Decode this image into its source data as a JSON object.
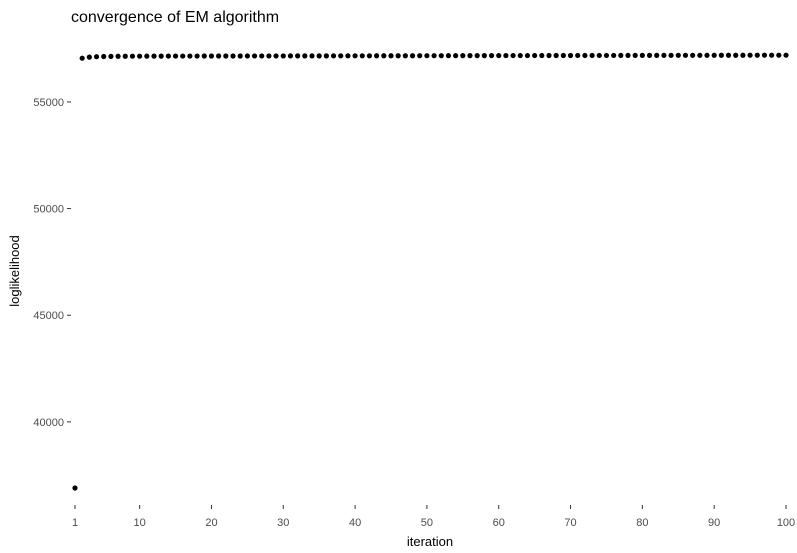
{
  "chart_data": {
    "type": "scatter",
    "title": "convergence of EM algorithm",
    "xlabel": "iteration",
    "ylabel": "loglikelihood",
    "x_ticks": [
      1,
      10,
      20,
      30,
      40,
      50,
      60,
      70,
      80,
      90,
      100
    ],
    "y_ticks": [
      40000,
      45000,
      50000,
      55000
    ],
    "xlim": [
      1,
      100
    ],
    "ylim": [
      36900,
      57200
    ],
    "grid": false,
    "legend": "none",
    "point_color": "#000000",
    "series": [
      {
        "x": [
          1,
          2,
          3,
          4,
          5,
          6,
          7,
          8,
          9,
          10,
          11,
          12,
          13,
          14,
          15,
          16,
          17,
          18,
          19,
          20,
          21,
          22,
          23,
          24,
          25,
          26,
          27,
          28,
          29,
          30,
          31,
          32,
          33,
          34,
          35,
          36,
          37,
          38,
          39,
          40,
          41,
          42,
          43,
          44,
          45,
          46,
          47,
          48,
          49,
          50,
          51,
          52,
          53,
          54,
          55,
          56,
          57,
          58,
          59,
          60,
          61,
          62,
          63,
          64,
          65,
          66,
          67,
          68,
          69,
          70,
          71,
          72,
          73,
          74,
          75,
          76,
          77,
          78,
          79,
          80,
          81,
          82,
          83,
          84,
          85,
          86,
          87,
          88,
          89,
          90,
          91,
          92,
          93,
          94,
          95,
          96,
          97,
          98,
          99,
          100
        ],
        "y": [
          36900,
          57050,
          57100,
          57120,
          57130,
          57135,
          57140,
          57142,
          57144,
          57145,
          57146,
          57147,
          57148,
          57149,
          57150,
          57150,
          57151,
          57151,
          57152,
          57152,
          57153,
          57153,
          57154,
          57154,
          57155,
          57155,
          57156,
          57156,
          57157,
          57157,
          57158,
          57158,
          57159,
          57159,
          57160,
          57160,
          57161,
          57161,
          57162,
          57162,
          57163,
          57163,
          57164,
          57164,
          57165,
          57165,
          57166,
          57166,
          57167,
          57167,
          57168,
          57168,
          57169,
          57169,
          57170,
          57170,
          57171,
          57171,
          57172,
          57172,
          57173,
          57173,
          57174,
          57174,
          57175,
          57175,
          57176,
          57176,
          57177,
          57177,
          57178,
          57178,
          57179,
          57179,
          57180,
          57180,
          57181,
          57181,
          57182,
          57182,
          57183,
          57183,
          57184,
          57184,
          57185,
          57185,
          57186,
          57186,
          57187,
          57187,
          57188,
          57188,
          57189,
          57189,
          57190,
          57190,
          57191,
          57191,
          57192,
          57192
        ]
      }
    ]
  }
}
